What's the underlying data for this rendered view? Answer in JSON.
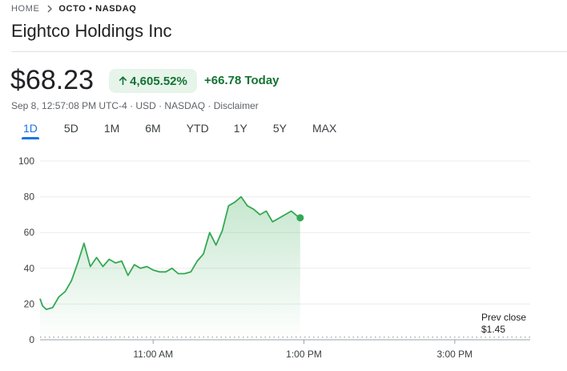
{
  "breadcrumb": {
    "home": "HOME",
    "ticker": "OCTO • NASDAQ"
  },
  "title": "Eightco Holdings Inc",
  "quote": {
    "price": "$68.23",
    "change_pct": "4,605.52%",
    "change_abs": "+66.78 Today",
    "meta": "Sep 8, 12:57:08 PM UTC-4 · USD · NASDAQ · Disclaimer"
  },
  "tabs": [
    "1D",
    "5D",
    "1M",
    "6M",
    "YTD",
    "1Y",
    "5Y",
    "MAX"
  ],
  "active_tab": "1D",
  "icons": {
    "breadcrumb_separator": "chevron-right-icon",
    "change_direction": "arrow-up-icon"
  },
  "colors": {
    "positive": "#137333",
    "line": "#34a853",
    "accent": "#1a73e8",
    "pill_bg": "#e6f4ea"
  },
  "chart_data": {
    "type": "area",
    "y_ticks": [
      "100",
      "80",
      "60",
      "40",
      "20",
      "0"
    ],
    "x_ticks": [
      "11:00 AM",
      "1:00 PM",
      "3:00 PM"
    ],
    "ylim": [
      0,
      100
    ],
    "xlim": [
      "9:30 AM",
      "4:00 PM"
    ],
    "grid": true,
    "prev_close_label": "Prev close",
    "prev_close_value": "$1.45",
    "prev_close": 1.45,
    "last_value": 68.23,
    "series": [
      {
        "x": [
          "9:30",
          "9:32",
          "9:35",
          "9:40",
          "9:45",
          "9:50",
          "9:55",
          "10:00",
          "10:05",
          "10:10",
          "10:15",
          "10:20",
          "10:25",
          "10:30",
          "10:35",
          "10:40",
          "10:45",
          "10:50",
          "10:55",
          "11:00",
          "11:05",
          "11:10",
          "11:15",
          "11:20",
          "11:25",
          "11:30",
          "11:35",
          "11:40",
          "11:45",
          "11:50",
          "11:55",
          "12:00",
          "12:05",
          "12:10",
          "12:15",
          "12:20",
          "12:25",
          "12:30",
          "12:35",
          "12:40",
          "12:45",
          "12:50",
          "12:55",
          "12:57"
        ],
        "y": [
          23,
          19,
          17,
          18,
          24,
          27,
          33,
          43,
          54,
          41,
          46,
          41,
          45,
          43,
          44,
          36,
          42,
          40,
          41,
          39,
          38,
          38,
          40,
          37,
          37,
          38,
          44,
          48,
          60,
          53,
          61,
          75,
          77,
          80,
          75,
          73,
          70,
          72,
          66,
          68,
          70,
          72,
          69,
          68.23
        ]
      }
    ]
  }
}
